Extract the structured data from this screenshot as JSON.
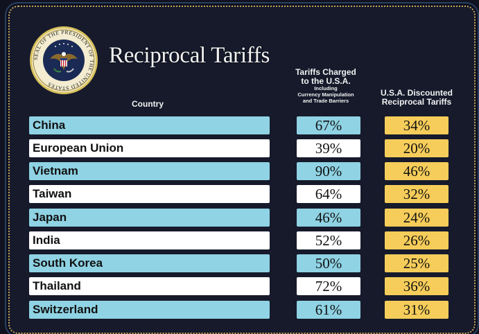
{
  "header": {
    "title": "Reciprocal Tariffs",
    "seal_text": "SEAL OF THE PRESIDENT OF THE UNITED STATES",
    "col_country": "Country",
    "col_charged_main_1": "Tariffs Charged",
    "col_charged_main_2": "to the U.S.A.",
    "col_charged_sub_1": "Including",
    "col_charged_sub_2": "Currency Manipulation",
    "col_charged_sub_3": "and Trade Barriers",
    "col_disc_1": "U.S.A. Discounted",
    "col_disc_2": "Reciprocal Tariffs"
  },
  "colors": {
    "row_blue": "#8fd3e4",
    "row_white": "#ffffff",
    "discounted": "#f6cd5a",
    "background": "#161a2b"
  },
  "rows": [
    {
      "country": "China",
      "charged": "67%",
      "discounted": "34%"
    },
    {
      "country": "European Union",
      "charged": "39%",
      "discounted": "20%"
    },
    {
      "country": "Vietnam",
      "charged": "90%",
      "discounted": "46%"
    },
    {
      "country": "Taiwan",
      "charged": "64%",
      "discounted": "32%"
    },
    {
      "country": "Japan",
      "charged": "46%",
      "discounted": "24%"
    },
    {
      "country": "India",
      "charged": "52%",
      "discounted": "26%"
    },
    {
      "country": "South Korea",
      "charged": "50%",
      "discounted": "25%"
    },
    {
      "country": "Thailand",
      "charged": "72%",
      "discounted": "36%"
    },
    {
      "country": "Switzerland",
      "charged": "61%",
      "discounted": "31%"
    }
  ]
}
